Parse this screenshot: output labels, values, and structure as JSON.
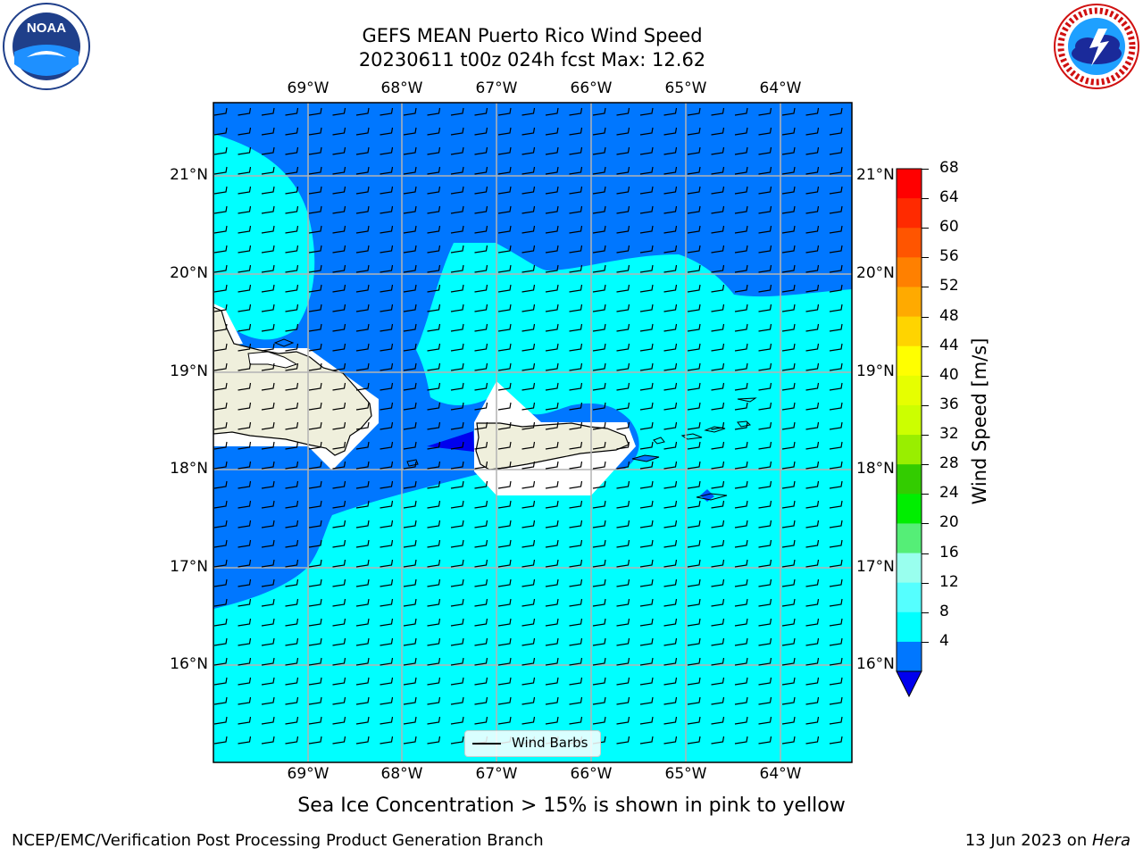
{
  "header": {
    "title_line1": "GEFS MEAN Puerto Rico Wind Speed",
    "title_line2": "20230611 t00z 024h fcst   Max: 12.62"
  },
  "logos": {
    "left": {
      "name": "noaa-logo",
      "text": "NOAA"
    },
    "right": {
      "name": "nws-logo",
      "text": "NATIONAL WEATHER SERVICE"
    }
  },
  "map": {
    "lon_labels": [
      "69°W",
      "68°W",
      "67°W",
      "66°W",
      "65°W",
      "64°W"
    ],
    "lat_labels": [
      "21°N",
      "20°N",
      "19°N",
      "18°N",
      "17°N",
      "16°N"
    ],
    "legend": {
      "label": "Wind Barbs"
    }
  },
  "colorbar": {
    "label": "Wind Speed [m/s]",
    "ticks": [
      "68",
      "64",
      "60",
      "56",
      "52",
      "48",
      "44",
      "40",
      "36",
      "32",
      "28",
      "24",
      "20",
      "16",
      "12",
      "8",
      "4"
    ],
    "colors": [
      "#ff0000",
      "#ff2a00",
      "#ff5500",
      "#ff8000",
      "#ffaa00",
      "#ffd400",
      "#ffff00",
      "#e6ff00",
      "#ccff00",
      "#99ee00",
      "#33cc00",
      "#00ee00",
      "#55ee77",
      "#99ffee",
      "#55ffff",
      "#00ffff",
      "#0077ff"
    ],
    "under_color": "#0000ee"
  },
  "notes": {
    "sea_ice": "Sea Ice Concentration > 15% is shown in pink to yellow"
  },
  "footer": {
    "left": "NCEP/EMC/Verification Post Processing Product Generation Branch",
    "right_date": "13 Jun 2023 on ",
    "right_host": "Hera"
  }
}
